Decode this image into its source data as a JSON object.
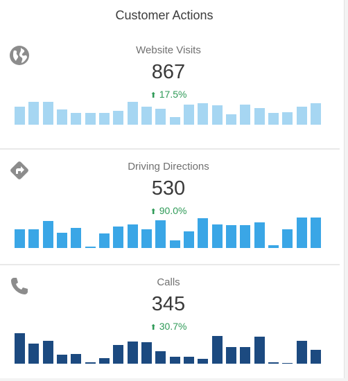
{
  "panel": {
    "title": "Customer Actions"
  },
  "metrics": [
    {
      "id": "website",
      "icon": "globe-icon",
      "label": "Website Visits",
      "value": "867",
      "change": "17.5%",
      "trend": "up",
      "bar_color": "#a6d6f2",
      "bars": [
        0.58,
        0.75,
        0.75,
        0.5,
        0.38,
        0.38,
        0.38,
        0.45,
        0.75,
        0.58,
        0.52,
        0.25,
        0.65,
        0.7,
        0.63,
        0.33,
        0.65,
        0.55,
        0.38,
        0.42,
        0.58,
        0.7
      ]
    },
    {
      "id": "directions",
      "icon": "directions-icon",
      "label": "Driving Directions",
      "value": "530",
      "change": "90.0%",
      "trend": "up",
      "bar_color": "#3aa6e6",
      "bars": [
        0.62,
        0.62,
        0.88,
        0.5,
        0.65,
        0.04,
        0.48,
        0.7,
        0.78,
        0.62,
        0.9,
        0.25,
        0.55,
        0.98,
        0.78,
        0.75,
        0.75,
        0.85,
        0.08,
        0.62,
        1.0,
        1.0
      ]
    },
    {
      "id": "calls",
      "icon": "phone-icon",
      "label": "Calls",
      "value": "345",
      "change": "30.7%",
      "trend": "up",
      "bar_color": "#1c4a80",
      "bars": [
        1.0,
        0.66,
        0.75,
        0.3,
        0.32,
        0.04,
        0.18,
        0.62,
        0.72,
        0.7,
        0.42,
        0.22,
        0.22,
        0.16,
        0.9,
        0.55,
        0.55,
        0.88,
        0.04,
        0.02,
        0.74,
        0.45
      ]
    }
  ]
}
